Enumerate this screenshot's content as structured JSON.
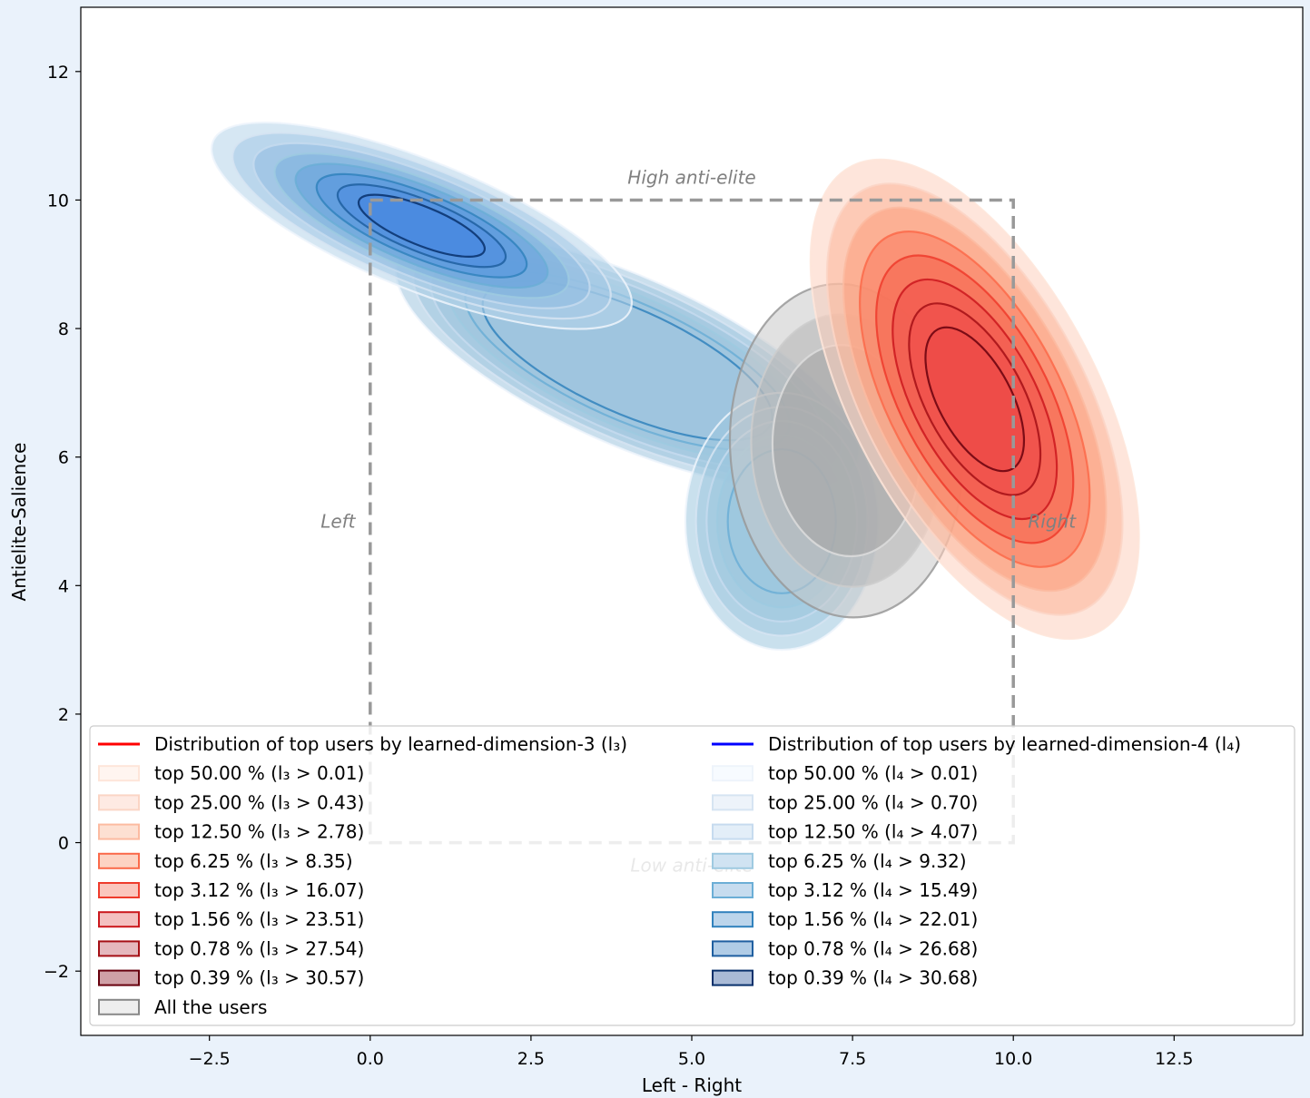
{
  "chart_data": {
    "type": "kde-contour",
    "xlabel": "Left - Right",
    "ylabel": "Antielite-Salience",
    "xlim": [
      -4.5,
      14.5
    ],
    "ylim": [
      -3,
      13
    ],
    "xticks": [
      -2.5,
      0.0,
      2.5,
      5.0,
      7.5,
      10.0,
      12.5
    ],
    "xtick_labels": [
      "−2.5",
      "0.0",
      "2.5",
      "5.0",
      "7.5",
      "10.0",
      "12.5"
    ],
    "yticks": [
      -2,
      0,
      2,
      4,
      6,
      8,
      10,
      12
    ],
    "ytick_labels": [
      "−2",
      "0",
      "2",
      "4",
      "6",
      "8",
      "10",
      "12"
    ],
    "grid": false,
    "box": {
      "x": [
        0,
        10
      ],
      "y": [
        0,
        10
      ]
    },
    "annotations": [
      {
        "text": "High anti-elite",
        "x": 5.0,
        "y": 10.35
      },
      {
        "text": "Low anti-elite",
        "x": 5.0,
        "y": -0.35
      },
      {
        "text": "Left",
        "x": -0.5,
        "y": 5.0
      },
      {
        "text": "Right",
        "x": 10.6,
        "y": 5.0
      }
    ],
    "series": [
      {
        "name": "Distribution of top users by learned-dimension-3 (l₃)",
        "color": "#ff0000",
        "cx": 9.4,
        "cy": 6.9,
        "rx": 1.9,
        "ry": 4.1,
        "rot": -28
      },
      {
        "name": "Distribution of top users by learned-dimension-4 (l₄)",
        "color": "#0000ff",
        "cx": 0.8,
        "cy": 9.6,
        "rx": 3.5,
        "ry": 1.0,
        "rot": 22
      },
      {
        "name": "All the users",
        "color": "#808080",
        "cx": 7.4,
        "cy": 6.1,
        "rx": 1.8,
        "ry": 2.6,
        "rot": -5
      }
    ],
    "blob_l4_middle": {
      "cx": 4.0,
      "cy": 7.5,
      "rx": 3.9,
      "ry": 1.3,
      "rot": 24
    },
    "blob_l4_low": {
      "cx": 6.4,
      "cy": 5.0,
      "rx": 1.5,
      "ry": 2.0,
      "rot": 0
    },
    "legend": {
      "placement": "lower center",
      "left_col": [
        {
          "label": "Distribution of top users by learned-dimension-3 (l₃)",
          "kind": "line",
          "color": "#ff0000"
        },
        {
          "label": "top 50.00 % (l₃ > 0.01)",
          "kind": "patch",
          "fill": "#fff5f0",
          "stroke": "#fee5d9"
        },
        {
          "label": "top 25.00 % (l₃ > 0.43)",
          "kind": "patch",
          "fill": "#feeae3",
          "stroke": "#fbd5c5"
        },
        {
          "label": "top 12.50 % (l₃ > 2.78)",
          "kind": "patch",
          "fill": "#fde0d2",
          "stroke": "#fcbba1"
        },
        {
          "label": "top 6.25 % (l₃ > 8.35)",
          "kind": "patch",
          "fill": "#fdd3c3",
          "stroke": "#fb6a4a"
        },
        {
          "label": "top 3.12 % (l₃ > 16.07)",
          "kind": "patch",
          "fill": "#fbc6bd",
          "stroke": "#ef3b2c"
        },
        {
          "label": "top 1.56 % (l₃ > 23.51)",
          "kind": "patch",
          "fill": "#f4c0c0",
          "stroke": "#cb181d"
        },
        {
          "label": "top 0.78 % (l₃ > 27.54)",
          "kind": "patch",
          "fill": "#e5b8bd",
          "stroke": "#a50f15"
        },
        {
          "label": "top 0.39 % (l₃ > 30.57)",
          "kind": "patch",
          "fill": "#cfa0a6",
          "stroke": "#67000d"
        },
        {
          "label": "All the users",
          "kind": "patch",
          "fill": "#eeeeee",
          "stroke": "#888888"
        }
      ],
      "right_col": [
        {
          "label": "Distribution of top users by learned-dimension-4 (l₄)",
          "kind": "line",
          "color": "#0000ff"
        },
        {
          "label": "top 50.00 % (l₄ > 0.01)",
          "kind": "patch",
          "fill": "#f7fbff",
          "stroke": "#eef4fb"
        },
        {
          "label": "top 25.00 % (l₄ > 0.70)",
          "kind": "patch",
          "fill": "#edf3fa",
          "stroke": "#d6e4f2"
        },
        {
          "label": "top 12.50 % (l₄ > 4.07)",
          "kind": "patch",
          "fill": "#e3eef8",
          "stroke": "#c6dbef"
        },
        {
          "label": "top 6.25 % (l₄ > 9.32)",
          "kind": "patch",
          "fill": "#d0e3f2",
          "stroke": "#9ecae1"
        },
        {
          "label": "top 3.12 % (l₄ > 15.49)",
          "kind": "patch",
          "fill": "#c6dcef",
          "stroke": "#6baed6"
        },
        {
          "label": "top 1.56 % (l₄ > 22.01)",
          "kind": "patch",
          "fill": "#bcd5eb",
          "stroke": "#3182bd"
        },
        {
          "label": "top 0.78 % (l₄ > 26.68)",
          "kind": "patch",
          "fill": "#b0cce6",
          "stroke": "#1f5fa0"
        },
        {
          "label": "top 0.39 % (l₄ > 30.68)",
          "kind": "patch",
          "fill": "#a9bad6",
          "stroke": "#08306b"
        }
      ]
    }
  }
}
